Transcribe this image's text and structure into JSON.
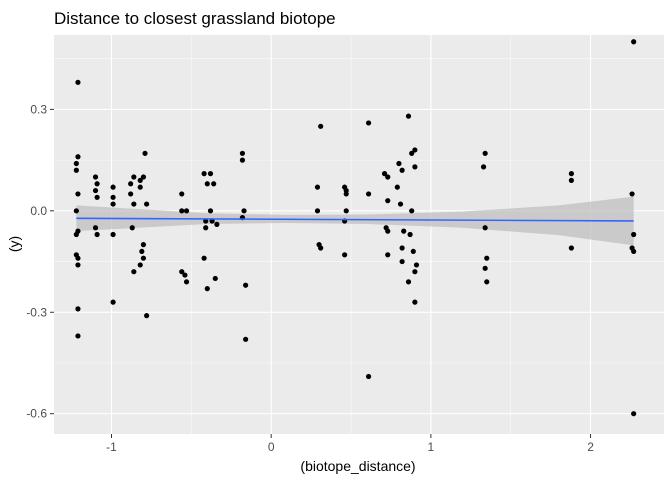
{
  "chart_data": {
    "type": "scatter",
    "title": "Distance to closest grassland biotope",
    "xlabel": "(biotope_distance)",
    "ylabel": "(y)",
    "xlim": [
      -1.36,
      2.46
    ],
    "ylim": [
      -0.66,
      0.52
    ],
    "x_ticks": [
      -1,
      0,
      1,
      2
    ],
    "x_tick_labels": [
      "-1",
      "0",
      "1",
      "2"
    ],
    "y_ticks": [
      -0.6,
      -0.3,
      0.0,
      0.3
    ],
    "y_tick_labels": [
      "-0.6",
      "-0.3",
      "0.0",
      "0.3"
    ],
    "grid": true,
    "colors": {
      "panel": "#ebebeb",
      "grid_major": "#ffffff",
      "points": "#000000",
      "smooth_line": "#3366ff",
      "ribbon": "#bfbfbf"
    },
    "points": [
      {
        "x": -1.21,
        "y": 0.38
      },
      {
        "x": -1.21,
        "y": 0.16
      },
      {
        "x": -1.22,
        "y": 0.14
      },
      {
        "x": -1.22,
        "y": 0.12
      },
      {
        "x": -1.21,
        "y": 0.05
      },
      {
        "x": -1.22,
        "y": 0.0
      },
      {
        "x": -1.21,
        "y": -0.06
      },
      {
        "x": -1.22,
        "y": -0.07
      },
      {
        "x": -1.22,
        "y": -0.13
      },
      {
        "x": -1.21,
        "y": -0.14
      },
      {
        "x": -1.21,
        "y": -0.16
      },
      {
        "x": -1.21,
        "y": -0.29
      },
      {
        "x": -1.21,
        "y": -0.37
      },
      {
        "x": -1.1,
        "y": 0.1
      },
      {
        "x": -1.09,
        "y": 0.08
      },
      {
        "x": -1.1,
        "y": 0.06
      },
      {
        "x": -1.09,
        "y": 0.04
      },
      {
        "x": -1.1,
        "y": -0.05
      },
      {
        "x": -1.09,
        "y": -0.07
      },
      {
        "x": -0.99,
        "y": 0.07
      },
      {
        "x": -0.99,
        "y": 0.04
      },
      {
        "x": -0.99,
        "y": 0.02
      },
      {
        "x": -0.99,
        "y": -0.07
      },
      {
        "x": -0.99,
        "y": -0.27
      },
      {
        "x": -0.88,
        "y": 0.08
      },
      {
        "x": -0.88,
        "y": 0.05
      },
      {
        "x": -0.86,
        "y": 0.1
      },
      {
        "x": -0.86,
        "y": 0.02
      },
      {
        "x": -0.87,
        "y": -0.05
      },
      {
        "x": -0.86,
        "y": -0.18
      },
      {
        "x": -0.82,
        "y": 0.09
      },
      {
        "x": -0.82,
        "y": 0.07
      },
      {
        "x": -0.8,
        "y": 0.1
      },
      {
        "x": -0.79,
        "y": 0.17
      },
      {
        "x": -0.78,
        "y": 0.02
      },
      {
        "x": -0.8,
        "y": -0.1
      },
      {
        "x": -0.81,
        "y": -0.12
      },
      {
        "x": -0.8,
        "y": -0.14
      },
      {
        "x": -0.82,
        "y": -0.16
      },
      {
        "x": -0.78,
        "y": -0.31
      },
      {
        "x": -0.56,
        "y": 0.05
      },
      {
        "x": -0.56,
        "y": 0.0
      },
      {
        "x": -0.53,
        "y": 0.0
      },
      {
        "x": -0.56,
        "y": -0.18
      },
      {
        "x": -0.54,
        "y": -0.19
      },
      {
        "x": -0.53,
        "y": -0.21
      },
      {
        "x": -0.42,
        "y": 0.11
      },
      {
        "x": -0.4,
        "y": 0.08
      },
      {
        "x": -0.38,
        "y": 0.11
      },
      {
        "x": -0.36,
        "y": 0.08
      },
      {
        "x": -0.38,
        "y": 0.0
      },
      {
        "x": -0.41,
        "y": -0.03
      },
      {
        "x": -0.37,
        "y": -0.03
      },
      {
        "x": -0.34,
        "y": -0.04
      },
      {
        "x": -0.41,
        "y": -0.05
      },
      {
        "x": -0.42,
        "y": -0.14
      },
      {
        "x": -0.35,
        "y": -0.2
      },
      {
        "x": -0.4,
        "y": -0.23
      },
      {
        "x": -0.18,
        "y": 0.17
      },
      {
        "x": -0.18,
        "y": 0.15
      },
      {
        "x": -0.17,
        "y": 0.0
      },
      {
        "x": -0.18,
        "y": -0.02
      },
      {
        "x": -0.16,
        "y": -0.22
      },
      {
        "x": -0.16,
        "y": -0.38
      },
      {
        "x": 0.29,
        "y": 0.07
      },
      {
        "x": 0.29,
        "y": 0.0
      },
      {
        "x": 0.3,
        "y": -0.1
      },
      {
        "x": 0.31,
        "y": -0.11
      },
      {
        "x": 0.31,
        "y": 0.25
      },
      {
        "x": 0.46,
        "y": 0.07
      },
      {
        "x": 0.47,
        "y": 0.06
      },
      {
        "x": 0.47,
        "y": 0.05
      },
      {
        "x": 0.47,
        "y": 0.0
      },
      {
        "x": 0.46,
        "y": -0.03
      },
      {
        "x": 0.46,
        "y": -0.13
      },
      {
        "x": 0.61,
        "y": 0.26
      },
      {
        "x": 0.61,
        "y": 0.05
      },
      {
        "x": 0.61,
        "y": -0.49
      },
      {
        "x": 0.71,
        "y": 0.11
      },
      {
        "x": 0.73,
        "y": 0.1
      },
      {
        "x": 0.73,
        "y": 0.03
      },
      {
        "x": 0.72,
        "y": -0.05
      },
      {
        "x": 0.73,
        "y": -0.06
      },
      {
        "x": 0.73,
        "y": -0.13
      },
      {
        "x": 0.8,
        "y": 0.14
      },
      {
        "x": 0.82,
        "y": 0.12
      },
      {
        "x": 0.79,
        "y": 0.07
      },
      {
        "x": 0.81,
        "y": 0.02
      },
      {
        "x": 0.83,
        "y": -0.06
      },
      {
        "x": 0.82,
        "y": -0.11
      },
      {
        "x": 0.82,
        "y": -0.15
      },
      {
        "x": 0.86,
        "y": 0.28
      },
      {
        "x": 0.88,
        "y": 0.17
      },
      {
        "x": 0.9,
        "y": 0.18
      },
      {
        "x": 0.9,
        "y": 0.13
      },
      {
        "x": 0.88,
        "y": 0.0
      },
      {
        "x": 0.87,
        "y": -0.07
      },
      {
        "x": 0.89,
        "y": -0.12
      },
      {
        "x": 0.91,
        "y": -0.16
      },
      {
        "x": 0.9,
        "y": -0.18
      },
      {
        "x": 0.86,
        "y": -0.21
      },
      {
        "x": 0.9,
        "y": -0.27
      },
      {
        "x": 1.34,
        "y": 0.17
      },
      {
        "x": 1.33,
        "y": 0.13
      },
      {
        "x": 1.34,
        "y": -0.05
      },
      {
        "x": 1.35,
        "y": -0.14
      },
      {
        "x": 1.34,
        "y": -0.17
      },
      {
        "x": 1.35,
        "y": -0.21
      },
      {
        "x": 1.88,
        "y": 0.11
      },
      {
        "x": 1.88,
        "y": 0.09
      },
      {
        "x": 1.88,
        "y": -0.11
      },
      {
        "x": 2.27,
        "y": 0.5
      },
      {
        "x": 2.26,
        "y": 0.05
      },
      {
        "x": 2.27,
        "y": -0.07
      },
      {
        "x": 2.26,
        "y": -0.11
      },
      {
        "x": 2.27,
        "y": -0.12
      },
      {
        "x": 2.27,
        "y": -0.6
      }
    ],
    "smooth": {
      "method": "lm",
      "line": [
        {
          "x": -1.22,
          "y": -0.022
        },
        {
          "x": 2.27,
          "y": -0.03
        }
      ],
      "ribbon_upper": [
        {
          "x": -1.22,
          "y": 0.016
        },
        {
          "x": -0.4,
          "y": -0.007
        },
        {
          "x": 0.1,
          "y": -0.012
        },
        {
          "x": 0.6,
          "y": -0.011
        },
        {
          "x": 1.2,
          "y": -0.002
        },
        {
          "x": 1.8,
          "y": 0.016
        },
        {
          "x": 2.27,
          "y": 0.042
        }
      ],
      "ribbon_lower": [
        {
          "x": -1.22,
          "y": -0.06
        },
        {
          "x": -0.4,
          "y": -0.039
        },
        {
          "x": 0.1,
          "y": -0.036
        },
        {
          "x": 0.6,
          "y": -0.039
        },
        {
          "x": 1.2,
          "y": -0.05
        },
        {
          "x": 1.8,
          "y": -0.072
        },
        {
          "x": 2.27,
          "y": -0.102
        }
      ]
    }
  }
}
